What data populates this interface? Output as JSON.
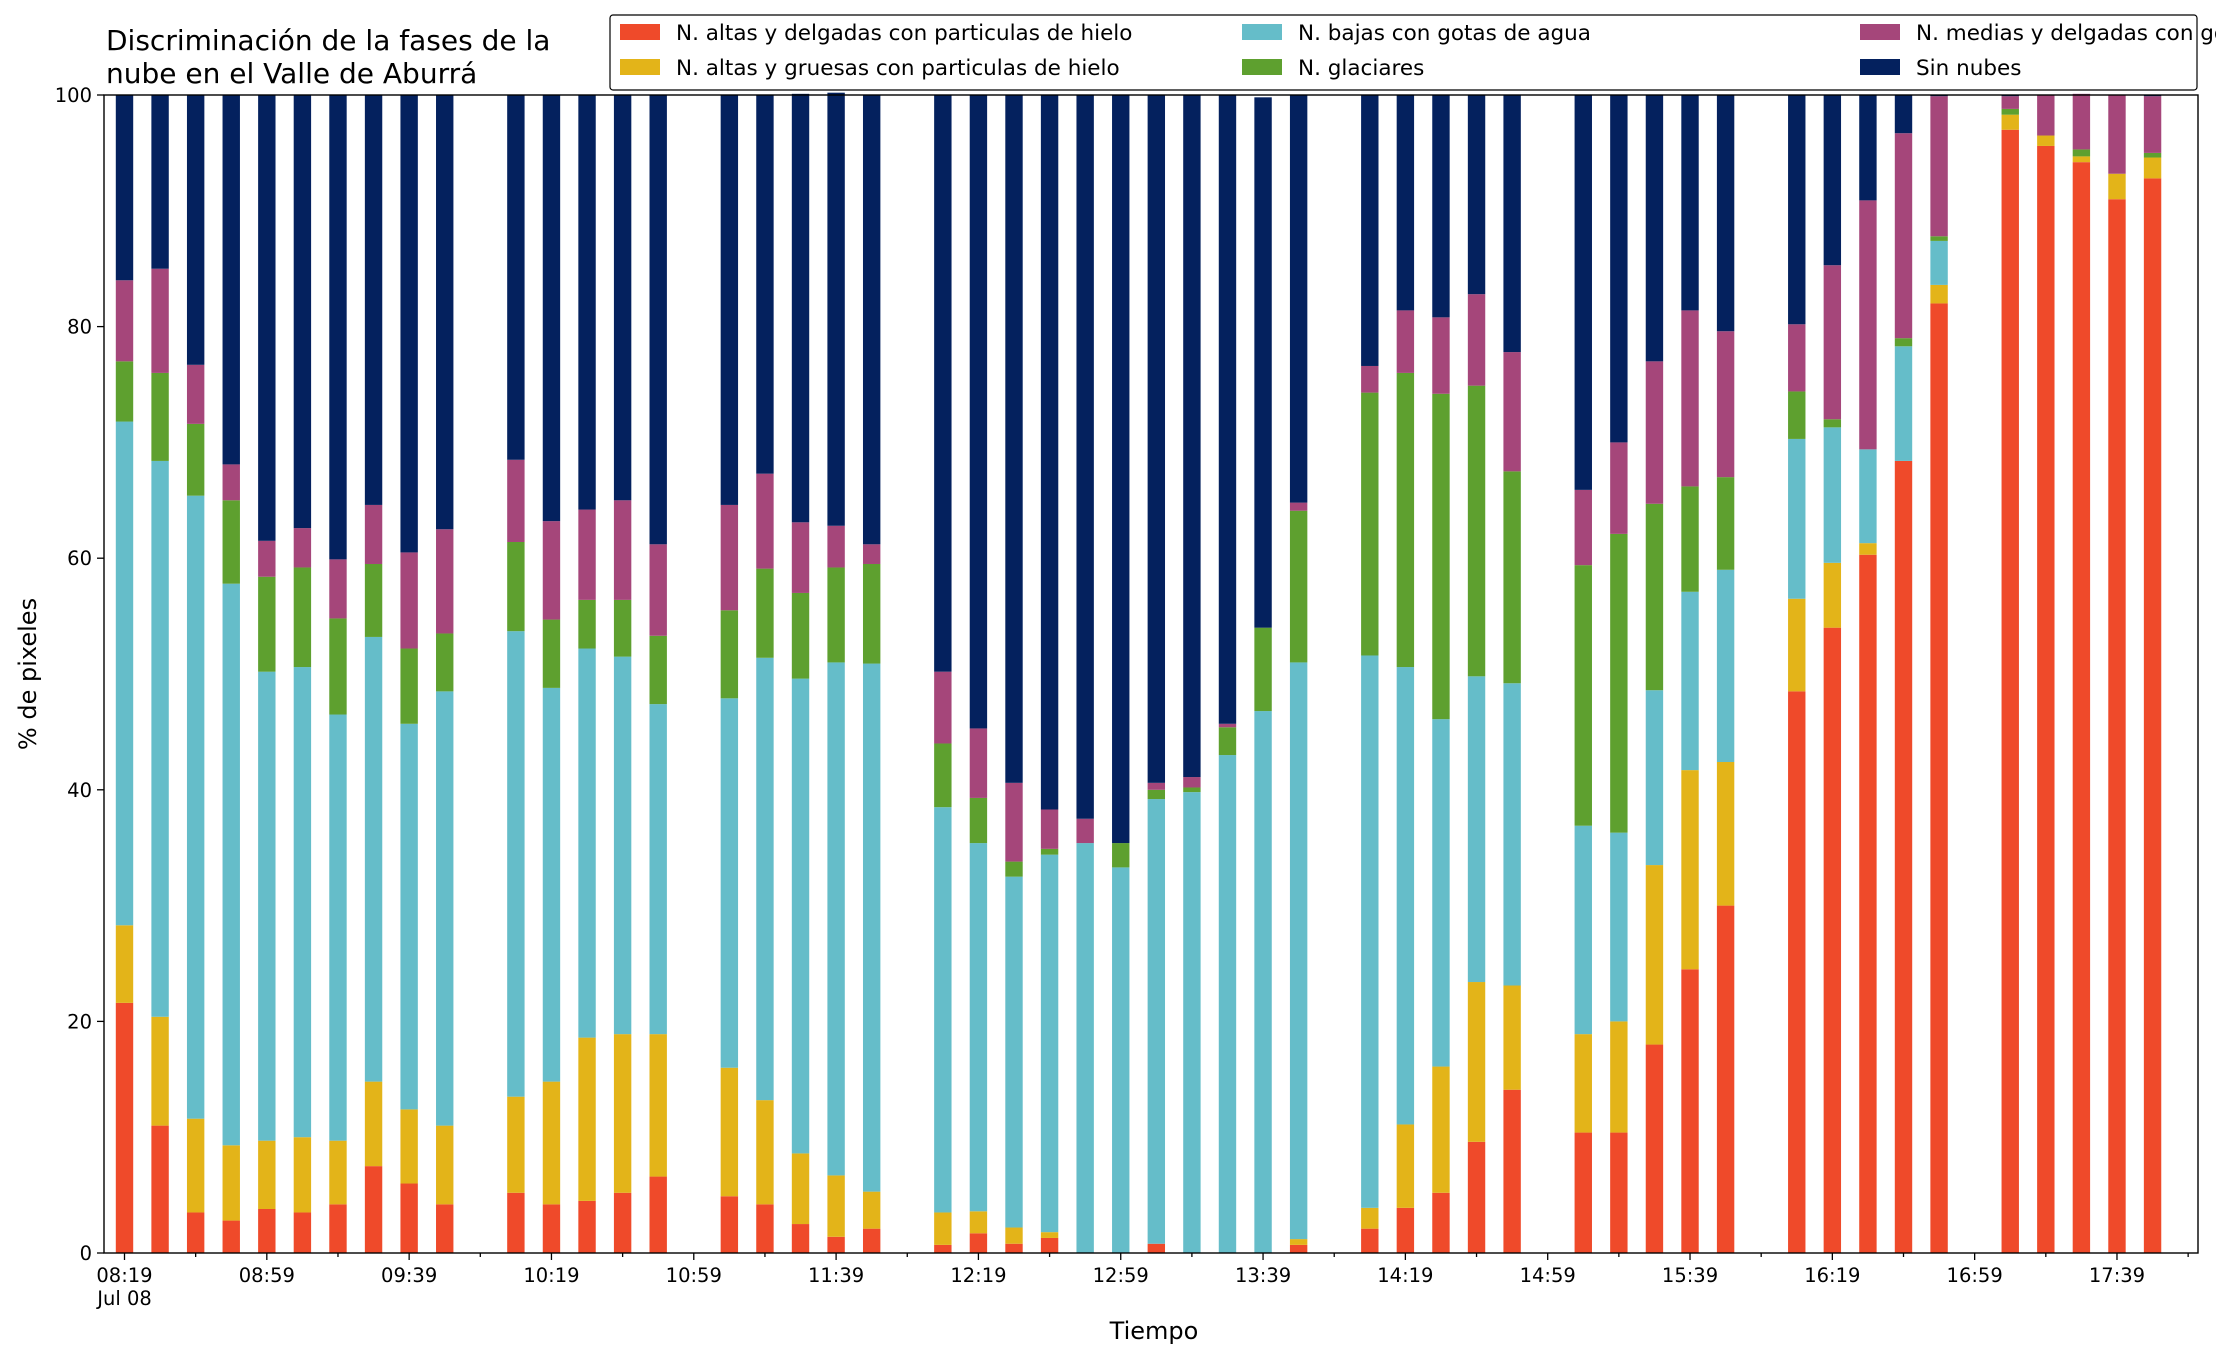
{
  "chart_data": {
    "type": "bar",
    "stacked": true,
    "title": "Discriminación de la fases de la nube en el Valle de Aburrá",
    "title_lines": [
      "Discriminación de la fases de la",
      "nube en el Valle de Aburrá"
    ],
    "xlabel": "Tiempo",
    "ylabel": "% de pixeles",
    "ylim": [
      0,
      100
    ],
    "yticks": [
      "0",
      "20",
      "40",
      "60",
      "80",
      "100"
    ],
    "grid": false,
    "legend_position": "top-right",
    "x_start": "08:19",
    "x_step_minutes": 10,
    "x_tick_labels": [
      "08:19",
      "08:59",
      "09:39",
      "10:19",
      "10:59",
      "11:39",
      "12:19",
      "12:59",
      "13:39",
      "14:19",
      "14:59",
      "15:39",
      "16:19",
      "16:59",
      "17:39"
    ],
    "x_date_label": "Jul 08",
    "series": [
      {
        "name": "N. altas y delgadas con particulas de hielo",
        "color": "#ef4a2a",
        "values": [
          21.6,
          11.0,
          3.5,
          2.8,
          3.8,
          3.5,
          4.2,
          7.5,
          6.0,
          4.2,
          null,
          5.2,
          4.2,
          4.5,
          5.2,
          6.6,
          null,
          4.9,
          4.2,
          2.5,
          1.4,
          2.1,
          null,
          0.7,
          1.7,
          0.8,
          1.3,
          0.0,
          0.0,
          0.8,
          0.0,
          0.0,
          0.0,
          0.7,
          null,
          2.1,
          3.9,
          5.2,
          9.6,
          14.1,
          null,
          10.4,
          10.4,
          18.0,
          24.5,
          30.0,
          null,
          48.5,
          54.0,
          60.3,
          68.4,
          82.0,
          null,
          97.0,
          95.6,
          94.2,
          91.0,
          92.8
        ]
      },
      {
        "name": "N. altas y gruesas con particulas de hielo",
        "color": "#e3b419",
        "values": [
          6.7,
          9.4,
          8.1,
          6.5,
          5.9,
          6.5,
          5.5,
          7.3,
          6.4,
          6.8,
          null,
          8.3,
          10.6,
          14.1,
          13.7,
          12.3,
          null,
          11.1,
          9.0,
          6.1,
          5.3,
          3.2,
          null,
          2.8,
          1.9,
          1.4,
          0.5,
          0.0,
          0.0,
          0.0,
          0.0,
          0.0,
          0.0,
          0.5,
          null,
          1.8,
          7.2,
          10.9,
          13.8,
          9.0,
          null,
          8.5,
          9.6,
          15.5,
          17.2,
          12.4,
          null,
          8.0,
          5.6,
          1.0,
          0.0,
          1.6,
          null,
          1.3,
          0.9,
          0.5,
          2.2,
          1.8
        ]
      },
      {
        "name": "N. bajas con gotas de agua",
        "color": "#65bdc9",
        "values": [
          43.5,
          48.0,
          53.8,
          48.5,
          40.5,
          40.6,
          36.8,
          38.4,
          33.3,
          37.5,
          null,
          40.2,
          34.0,
          33.6,
          32.6,
          28.5,
          null,
          31.9,
          38.2,
          41.0,
          44.3,
          45.6,
          null,
          35.0,
          31.8,
          30.3,
          32.6,
          35.4,
          33.3,
          38.4,
          39.8,
          43.0,
          46.8,
          49.8,
          null,
          47.7,
          39.5,
          30.0,
          26.4,
          26.1,
          null,
          18.0,
          16.3,
          15.1,
          15.4,
          16.6,
          null,
          13.8,
          11.7,
          8.1,
          9.9,
          3.8,
          null,
          0.0,
          0.0,
          0.0,
          0.0,
          0.0
        ]
      },
      {
        "name": "N. glaciares",
        "color": "#5ea02f",
        "values": [
          5.2,
          7.6,
          6.2,
          7.2,
          8.2,
          8.6,
          8.3,
          6.3,
          6.5,
          5.0,
          null,
          7.7,
          5.9,
          4.2,
          4.9,
          5.9,
          null,
          7.6,
          7.7,
          7.4,
          8.2,
          8.6,
          null,
          5.5,
          3.9,
          1.3,
          0.5,
          0.0,
          2.1,
          0.8,
          0.4,
          2.4,
          7.2,
          13.1,
          null,
          22.7,
          25.4,
          28.1,
          25.1,
          18.3,
          null,
          22.5,
          25.8,
          16.1,
          9.1,
          8.0,
          null,
          4.1,
          0.7,
          0.0,
          0.7,
          0.4,
          null,
          0.5,
          0.0,
          0.6,
          0.0,
          0.4
        ]
      },
      {
        "name": "N. medias y delgadas con gotas de agua",
        "color": "#a5467a",
        "values": [
          7.0,
          9.0,
          5.1,
          3.1,
          3.1,
          3.4,
          5.1,
          5.1,
          8.3,
          9.0,
          null,
          7.1,
          8.5,
          7.8,
          8.6,
          7.9,
          null,
          9.1,
          8.2,
          6.1,
          3.6,
          1.7,
          null,
          6.2,
          6.0,
          6.8,
          3.4,
          2.1,
          0.0,
          0.6,
          0.9,
          0.3,
          0.0,
          0.7,
          null,
          2.3,
          5.4,
          6.6,
          7.9,
          10.3,
          null,
          6.5,
          7.9,
          12.3,
          15.2,
          12.6,
          null,
          5.8,
          13.3,
          21.5,
          17.7,
          12.1,
          null,
          1.1,
          3.5,
          4.8,
          6.8,
          4.9
        ]
      },
      {
        "name": "Sin nubes",
        "color": "#04215e",
        "values": [
          16.0,
          15.0,
          23.3,
          31.9,
          38.5,
          37.4,
          40.1,
          35.4,
          39.5,
          37.5,
          null,
          31.5,
          36.8,
          35.8,
          35.0,
          38.8,
          null,
          35.4,
          32.7,
          37.0,
          37.4,
          38.8,
          null,
          49.8,
          54.7,
          59.4,
          61.7,
          62.5,
          64.6,
          59.4,
          58.9,
          54.3,
          45.8,
          35.2,
          null,
          23.4,
          18.6,
          19.2,
          17.2,
          22.2,
          null,
          34.1,
          30.0,
          23.0,
          18.6,
          20.4,
          null,
          19.8,
          14.7,
          9.1,
          3.3,
          0.1,
          null,
          0.1,
          0.0,
          0.0,
          0.0,
          0.1
        ]
      }
    ]
  }
}
